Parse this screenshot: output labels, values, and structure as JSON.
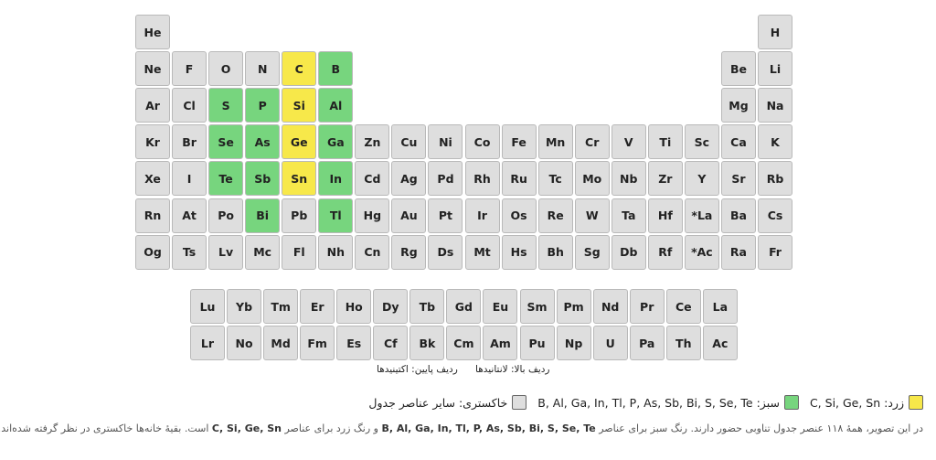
{
  "default_color": "#dedede",
  "table": {
    "rows": [
      [
        "He",
        null,
        null,
        null,
        null,
        null,
        null,
        null,
        null,
        null,
        null,
        null,
        null,
        null,
        null,
        null,
        null,
        "H"
      ],
      [
        "Ne",
        "F",
        "O",
        "N",
        {
          "s": "C",
          "c": "#f7e84a"
        },
        {
          "s": "B",
          "c": "#77d57e"
        },
        null,
        null,
        null,
        null,
        null,
        null,
        null,
        null,
        null,
        null,
        "Be",
        "Li"
      ],
      [
        "Ar",
        "Cl",
        {
          "s": "S",
          "c": "#77d57e"
        },
        {
          "s": "P",
          "c": "#77d57e"
        },
        {
          "s": "Si",
          "c": "#f7e84a"
        },
        {
          "s": "Al",
          "c": "#77d57e"
        },
        null,
        null,
        null,
        null,
        null,
        null,
        null,
        null,
        null,
        null,
        "Mg",
        "Na"
      ],
      [
        "Kr",
        "Br",
        {
          "s": "Se",
          "c": "#77d57e"
        },
        {
          "s": "As",
          "c": "#77d57e"
        },
        {
          "s": "Ge",
          "c": "#f7e84a"
        },
        {
          "s": "Ga",
          "c": "#77d57e"
        },
        "Zn",
        "Cu",
        "Ni",
        "Co",
        "Fe",
        "Mn",
        "Cr",
        "V",
        "Ti",
        "Sc",
        "Ca",
        "K"
      ],
      [
        "Xe",
        "I",
        {
          "s": "Te",
          "c": "#77d57e"
        },
        {
          "s": "Sb",
          "c": "#77d57e"
        },
        {
          "s": "Sn",
          "c": "#f7e84a"
        },
        {
          "s": "In",
          "c": "#77d57e"
        },
        "Cd",
        "Ag",
        "Pd",
        "Rh",
        "Ru",
        "Tc",
        "Mo",
        "Nb",
        "Zr",
        "Y",
        "Sr",
        "Rb"
      ],
      [
        "Rn",
        "At",
        "Po",
        {
          "s": "Bi",
          "c": "#77d57e"
        },
        "Pb",
        {
          "s": "Tl",
          "c": "#77d57e"
        },
        "Hg",
        "Au",
        "Pt",
        "Ir",
        "Os",
        "Re",
        "W",
        "Ta",
        "Hf",
        "*La",
        "Ba",
        "Cs"
      ],
      [
        "Og",
        "Ts",
        "Lv",
        "Mc",
        "Fl",
        "Nh",
        "Cn",
        "Rg",
        "Ds",
        "Mt",
        "Hs",
        "Bh",
        "Sg",
        "Db",
        "Rf",
        "*Ac",
        "Ra",
        "Fr"
      ]
    ]
  },
  "f_block": {
    "rows": [
      [
        "Lu",
        "Yb",
        "Tm",
        "Er",
        "Ho",
        "Dy",
        "Tb",
        "Gd",
        "Eu",
        "Sm",
        "Pm",
        "Nd",
        "Pr",
        "Ce",
        "La"
      ],
      [
        "Lr",
        "No",
        "Md",
        "Fm",
        "Es",
        "Cf",
        "Bk",
        "Cm",
        "Am",
        "Pu",
        "Np",
        "U",
        "Pa",
        "Th",
        "Ac"
      ]
    ]
  },
  "notes": {
    "top": "ردیف بالا: لانتانیدها",
    "bottom": "ردیف پایین: اکتینیدها"
  },
  "legend": [
    {
      "label": "زرد: C, Si, Ge, Sn",
      "color": "#f7e84a"
    },
    {
      "label": "سبز: B, Al, Ga, In, Tl, P, As, Sb, Bi, S, Se, Te",
      "color": "#77d57e"
    },
    {
      "label": "خاکستری: سایر عناصر جدول",
      "color": "#dedede"
    }
  ],
  "paragraph": [
    {
      "text": "در این تصویر، همهٔ ۱۱۸ عنصر جدول تناوبی حضور دارند. رنگ سبز برای عناصر ",
      "bold": false
    },
    {
      "text": "B, Al, Ga, In, Tl, P, As, Sb, Bi, S, Se, Te",
      "bold": true
    },
    {
      "text": " و رنگ زرد برای عناصر ",
      "bold": false
    },
    {
      "text": "C, Si, Ge, Sn",
      "bold": true
    },
    {
      "text": " است. بقیهٔ خانه‌ها خاکستری در نظر گرفته شده‌اند.",
      "bold": false
    }
  ]
}
